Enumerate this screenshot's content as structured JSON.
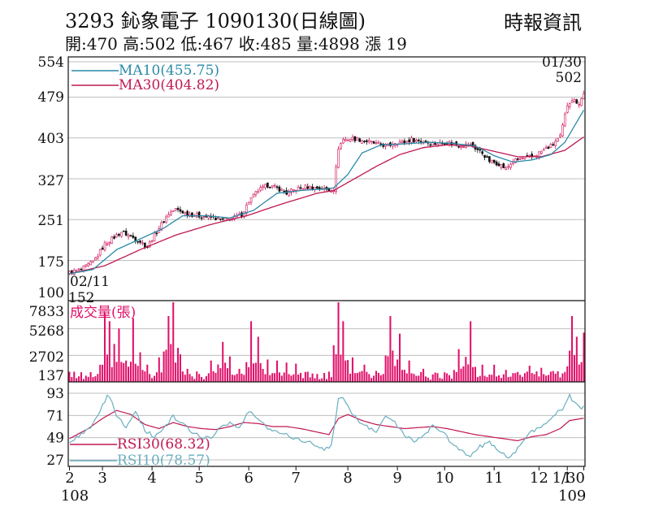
{
  "header": {
    "title": "3293  鈊象電子 1090130(日線圖)",
    "source": "時報資訊",
    "stats": "開:470 高:502 低:467 收:485 量:4898 漲 19"
  },
  "colors": {
    "up": "#d0105a",
    "down": "#111111",
    "ma10": "#2a8aa8",
    "ma30": "#c01850",
    "volume": "#e0106a",
    "rsi30": "#c01850",
    "rsi10": "#6aaec0",
    "grid": "#bfbfbf"
  },
  "chart_data": [
    {
      "type": "candlestick",
      "panel": "price",
      "y_ticks": [
        "554",
        "479",
        "403",
        "327",
        "251",
        "175",
        "100"
      ],
      "ylim": [
        100,
        554
      ],
      "grid": true,
      "annotations": {
        "first_date": "02/11",
        "first_low": "152",
        "last_date": "01/30",
        "last_high": "502"
      },
      "legend": [
        {
          "label": "MA10(455.75)",
          "color": "#2a8aa8"
        },
        {
          "label": "MA30(404.82)",
          "color": "#c01850"
        }
      ],
      "close_path": [
        [
          0,
          152
        ],
        [
          5,
          158
        ],
        [
          10,
          172
        ],
        [
          15,
          205
        ],
        [
          18,
          215
        ],
        [
          22,
          228
        ],
        [
          26,
          220
        ],
        [
          30,
          210
        ],
        [
          33,
          200
        ],
        [
          36,
          222
        ],
        [
          42,
          262
        ],
        [
          45,
          270
        ],
        [
          50,
          262
        ],
        [
          55,
          258
        ],
        [
          60,
          255
        ],
        [
          65,
          250
        ],
        [
          70,
          255
        ],
        [
          73,
          260
        ],
        [
          76,
          285
        ],
        [
          80,
          305
        ],
        [
          84,
          315
        ],
        [
          88,
          310
        ],
        [
          92,
          300
        ],
        [
          96,
          308
        ],
        [
          100,
          312
        ],
        [
          105,
          310
        ],
        [
          110,
          306
        ],
        [
          112,
          308
        ],
        [
          114,
          385
        ],
        [
          116,
          400
        ],
        [
          120,
          402
        ],
        [
          125,
          398
        ],
        [
          130,
          392
        ],
        [
          135,
          388
        ],
        [
          138,
          395
        ],
        [
          142,
          395
        ],
        [
          145,
          400
        ],
        [
          150,
          396
        ],
        [
          155,
          392
        ],
        [
          160,
          395
        ],
        [
          165,
          390
        ],
        [
          170,
          390
        ],
        [
          175,
          375
        ],
        [
          178,
          360
        ],
        [
          182,
          355
        ],
        [
          185,
          345
        ],
        [
          188,
          360
        ],
        [
          192,
          365
        ],
        [
          196,
          368
        ],
        [
          200,
          378
        ],
        [
          204,
          388
        ],
        [
          208,
          405
        ],
        [
          211,
          465
        ],
        [
          213,
          475
        ],
        [
          216,
          468
        ],
        [
          218,
          485
        ]
      ],
      "ma10_path": [
        [
          0,
          150
        ],
        [
          10,
          158
        ],
        [
          20,
          195
        ],
        [
          30,
          215
        ],
        [
          40,
          235
        ],
        [
          48,
          258
        ],
        [
          58,
          258
        ],
        [
          68,
          254
        ],
        [
          78,
          268
        ],
        [
          88,
          300
        ],
        [
          98,
          305
        ],
        [
          108,
          308
        ],
        [
          112,
          310
        ],
        [
          118,
          335
        ],
        [
          124,
          375
        ],
        [
          132,
          390
        ],
        [
          142,
          392
        ],
        [
          152,
          395
        ],
        [
          162,
          393
        ],
        [
          172,
          388
        ],
        [
          180,
          370
        ],
        [
          188,
          358
        ],
        [
          196,
          362
        ],
        [
          204,
          372
        ],
        [
          210,
          395
        ],
        [
          218,
          455
        ]
      ],
      "ma30_path": [
        [
          0,
          150
        ],
        [
          15,
          165
        ],
        [
          30,
          195
        ],
        [
          45,
          222
        ],
        [
          60,
          242
        ],
        [
          75,
          258
        ],
        [
          90,
          280
        ],
        [
          105,
          300
        ],
        [
          112,
          305
        ],
        [
          120,
          325
        ],
        [
          130,
          350
        ],
        [
          140,
          372
        ],
        [
          150,
          385
        ],
        [
          160,
          390
        ],
        [
          170,
          388
        ],
        [
          180,
          378
        ],
        [
          190,
          368
        ],
        [
          200,
          368
        ],
        [
          210,
          380
        ],
        [
          218,
          405
        ]
      ]
    },
    {
      "type": "bar",
      "panel": "volume",
      "title": "成交量(張)",
      "y_ticks": [
        "7833",
        "5268",
        "2702",
        "137"
      ],
      "ylim": [
        137,
        7833
      ],
      "grid": true,
      "spikes": [
        [
          0,
          200
        ],
        [
          10,
          500
        ],
        [
          12,
          900
        ],
        [
          15,
          6800
        ],
        [
          17,
          6000
        ],
        [
          19,
          3800
        ],
        [
          21,
          5300
        ],
        [
          24,
          2200
        ],
        [
          27,
          6300
        ],
        [
          30,
          3000
        ],
        [
          33,
          1800
        ],
        [
          38,
          2500
        ],
        [
          42,
          6500
        ],
        [
          44,
          7833
        ],
        [
          47,
          2800
        ],
        [
          50,
          1400
        ],
        [
          55,
          900
        ],
        [
          60,
          2200
        ],
        [
          65,
          4000
        ],
        [
          68,
          2600
        ],
        [
          72,
          1400
        ],
        [
          77,
          6000
        ],
        [
          80,
          4500
        ],
        [
          84,
          2300
        ],
        [
          88,
          2200
        ],
        [
          92,
          2000
        ],
        [
          96,
          1900
        ],
        [
          100,
          1100
        ],
        [
          105,
          900
        ],
        [
          110,
          700
        ],
        [
          114,
          7833
        ],
        [
          116,
          6000
        ],
        [
          120,
          2500
        ],
        [
          125,
          1800
        ],
        [
          130,
          1200
        ],
        [
          136,
          6500
        ],
        [
          140,
          4800
        ],
        [
          144,
          2200
        ],
        [
          150,
          1400
        ],
        [
          155,
          900
        ],
        [
          160,
          900
        ],
        [
          165,
          3300
        ],
        [
          170,
          6000
        ],
        [
          175,
          1800
        ],
        [
          180,
          1800
        ],
        [
          185,
          1300
        ],
        [
          190,
          1100
        ],
        [
          195,
          1700
        ],
        [
          200,
          1500
        ],
        [
          205,
          900
        ],
        [
          210,
          1100
        ],
        [
          213,
          6500
        ],
        [
          215,
          4500
        ],
        [
          218,
          4898
        ]
      ]
    },
    {
      "type": "line",
      "panel": "rsi",
      "y_ticks": [
        "93",
        "71",
        "49",
        "27"
      ],
      "ylim": [
        27,
        93
      ],
      "grid": true,
      "series": [
        {
          "name": "RSI30(68.32)",
          "points": [
            [
              0,
              48
            ],
            [
              8,
              58
            ],
            [
              14,
              68
            ],
            [
              20,
              76
            ],
            [
              26,
              72
            ],
            [
              32,
              62
            ],
            [
              38,
              58
            ],
            [
              44,
              64
            ],
            [
              50,
              60
            ],
            [
              56,
              58
            ],
            [
              62,
              57
            ],
            [
              68,
              60
            ],
            [
              74,
              64
            ],
            [
              80,
              63
            ],
            [
              86,
              60
            ],
            [
              92,
              60
            ],
            [
              98,
              58
            ],
            [
              104,
              55
            ],
            [
              110,
              52
            ],
            [
              114,
              68
            ],
            [
              118,
              72
            ],
            [
              124,
              66
            ],
            [
              130,
              62
            ],
            [
              136,
              60
            ],
            [
              142,
              58
            ],
            [
              148,
              59
            ],
            [
              154,
              60
            ],
            [
              160,
              58
            ],
            [
              166,
              55
            ],
            [
              172,
              52
            ],
            [
              178,
              50
            ],
            [
              184,
              48
            ],
            [
              190,
              46
            ],
            [
              196,
              50
            ],
            [
              202,
              52
            ],
            [
              208,
              58
            ],
            [
              212,
              66
            ],
            [
              218,
              68.32
            ]
          ]
        },
        {
          "name": "RSI10(78.57)",
          "points": [
            [
              0,
              42
            ],
            [
              6,
              55
            ],
            [
              10,
              62
            ],
            [
              14,
              80
            ],
            [
              16,
              90
            ],
            [
              18,
              85
            ],
            [
              20,
              70
            ],
            [
              24,
              60
            ],
            [
              28,
              76
            ],
            [
              32,
              56
            ],
            [
              36,
              50
            ],
            [
              40,
              58
            ],
            [
              44,
              70
            ],
            [
              48,
              62
            ],
            [
              52,
              55
            ],
            [
              56,
              50
            ],
            [
              60,
              48
            ],
            [
              64,
              60
            ],
            [
              68,
              64
            ],
            [
              72,
              58
            ],
            [
              76,
              75
            ],
            [
              80,
              68
            ],
            [
              84,
              58
            ],
            [
              88,
              56
            ],
            [
              92,
              52
            ],
            [
              96,
              48
            ],
            [
              100,
              46
            ],
            [
              104,
              42
            ],
            [
              108,
              38
            ],
            [
              111,
              40
            ],
            [
              114,
              88
            ],
            [
              116,
              90
            ],
            [
              118,
              80
            ],
            [
              122,
              66
            ],
            [
              126,
              60
            ],
            [
              130,
              56
            ],
            [
              134,
              70
            ],
            [
              138,
              64
            ],
            [
              142,
              52
            ],
            [
              146,
              44
            ],
            [
              150,
              52
            ],
            [
              154,
              60
            ],
            [
              158,
              56
            ],
            [
              162,
              42
            ],
            [
              166,
              36
            ],
            [
              170,
              32
            ],
            [
              174,
              40
            ],
            [
              178,
              44
            ],
            [
              182,
              36
            ],
            [
              186,
              30
            ],
            [
              190,
              38
            ],
            [
              194,
              52
            ],
            [
              198,
              58
            ],
            [
              202,
              64
            ],
            [
              206,
              72
            ],
            [
              210,
              80
            ],
            [
              212,
              90
            ],
            [
              214,
              84
            ],
            [
              216,
              78
            ],
            [
              218,
              78.57
            ]
          ]
        }
      ]
    }
  ],
  "x_axis": {
    "labels": [
      {
        "text": "2",
        "i": 0
      },
      {
        "text": "3",
        "i": 14
      },
      {
        "text": "4",
        "i": 35
      },
      {
        "text": "5",
        "i": 55
      },
      {
        "text": "6",
        "i": 76
      },
      {
        "text": "7",
        "i": 96
      },
      {
        "text": "8",
        "i": 118
      },
      {
        "text": "9",
        "i": 139
      },
      {
        "text": "10",
        "i": 159
      },
      {
        "text": "11",
        "i": 180
      },
      {
        "text": "12",
        "i": 199
      },
      {
        "text": "1",
        "i": 211
      },
      {
        "text": "1/30",
        "i": 218
      }
    ],
    "year_labels": [
      {
        "text": "108",
        "i": 0
      },
      {
        "text": "109",
        "i": 211
      }
    ]
  }
}
